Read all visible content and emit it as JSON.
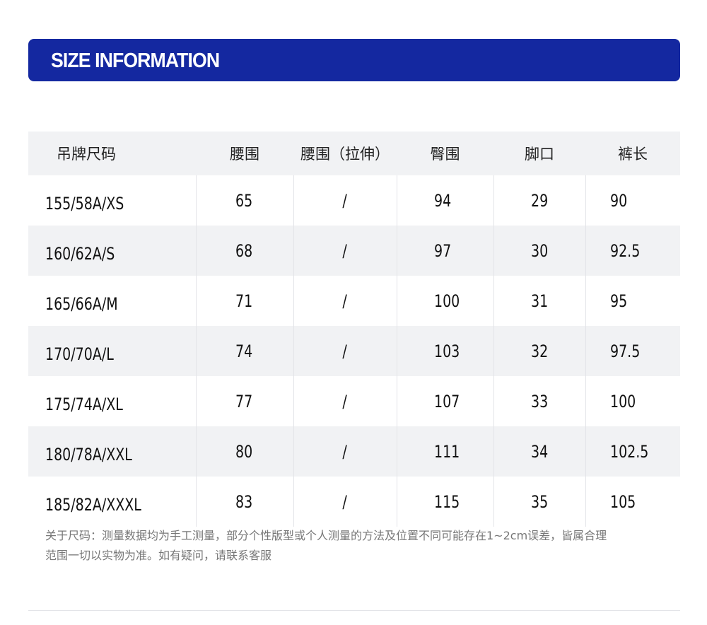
{
  "banner": {
    "title": "SIZE INFORMATION",
    "color": "#1428a0"
  },
  "table": {
    "headers": [
      "吊牌尺码",
      "腰围",
      "腰围（拉伸）",
      "臀围",
      "脚口",
      "裤长"
    ],
    "rows": [
      [
        "155/58A/XS",
        "65",
        "/",
        "94",
        "29",
        "90"
      ],
      [
        "160/62A/S",
        "68",
        "/",
        "97",
        "30",
        "92.5"
      ],
      [
        "165/66A/M",
        "71",
        "/",
        "100",
        "31",
        "95"
      ],
      [
        "170/70A/L",
        "74",
        "/",
        "103",
        "32",
        "97.5"
      ],
      [
        "175/74A/XL",
        "77",
        "/",
        "107",
        "33",
        "100"
      ],
      [
        "180/78A/XXL",
        "80",
        "/",
        "111",
        "34",
        "102.5"
      ],
      [
        "185/82A/XXXL",
        "83",
        "/",
        "115",
        "35",
        "105"
      ]
    ]
  },
  "note": {
    "line1": "关于尺码：测量数据均为手工测量，部分个性版型或个人测量的方法及位置不同可能存在1~2cm误差，皆属合理",
    "line2": "范围一切以实物为准。如有疑问，请联系客服"
  }
}
